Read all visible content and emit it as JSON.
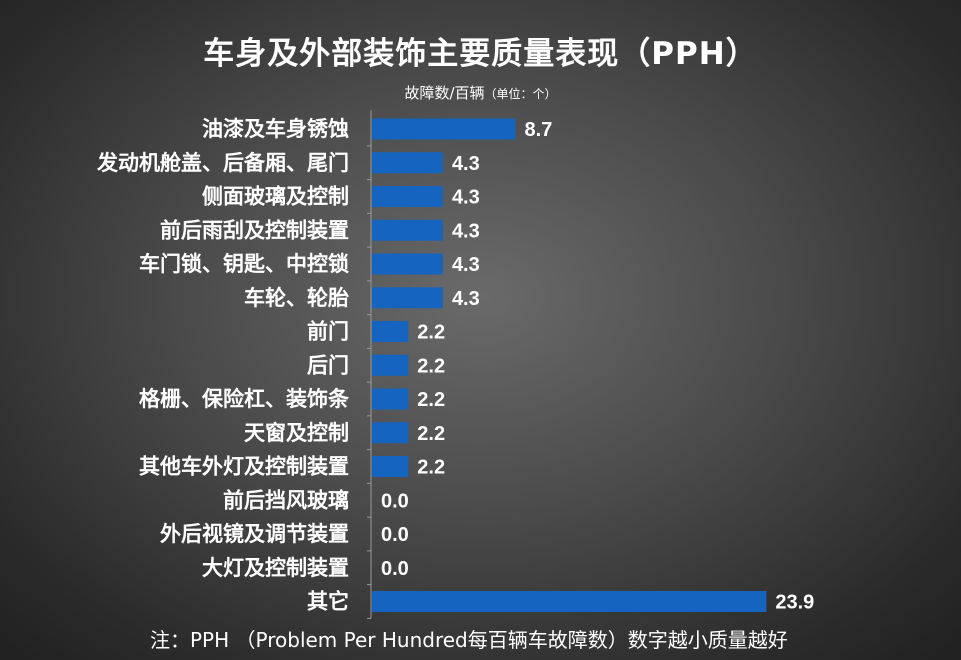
{
  "chart_data": {
    "type": "bar",
    "orientation": "horizontal",
    "title": "车身及外部装饰主要质量表现（PPH）",
    "subtitle": "故障数/百辆",
    "unit_label": "（单位：个）",
    "categories": [
      "油漆及车身锈蚀",
      "发动机舱盖、后备厢、尾门",
      "侧面玻璃及控制",
      "前后雨刮及控制装置",
      "车门锁、钥匙、中控锁",
      "车轮、轮胎",
      "前门",
      "后门",
      "格栅、保险杠、装饰条",
      "天窗及控制",
      "其他车外灯及控制装置",
      "前后挡风玻璃",
      "外后视镜及调节装置",
      "大灯及控制装置",
      "其它"
    ],
    "values": [
      8.7,
      4.3,
      4.3,
      4.3,
      4.3,
      4.3,
      2.2,
      2.2,
      2.2,
      2.2,
      2.2,
      0.0,
      0.0,
      0.0,
      23.9
    ],
    "value_labels": [
      "8.7",
      "4.3",
      "4.3",
      "4.3",
      "4.3",
      "4.3",
      "2.2",
      "2.2",
      "2.2",
      "2.2",
      "2.2",
      "0.0",
      "0.0",
      "0.0",
      "23.9"
    ],
    "bar_color": "#1565c0",
    "grid": false,
    "legend": "none"
  },
  "note": "注：PPH （Problem Per Hundred每百辆车故障数）数字越小质量越好"
}
